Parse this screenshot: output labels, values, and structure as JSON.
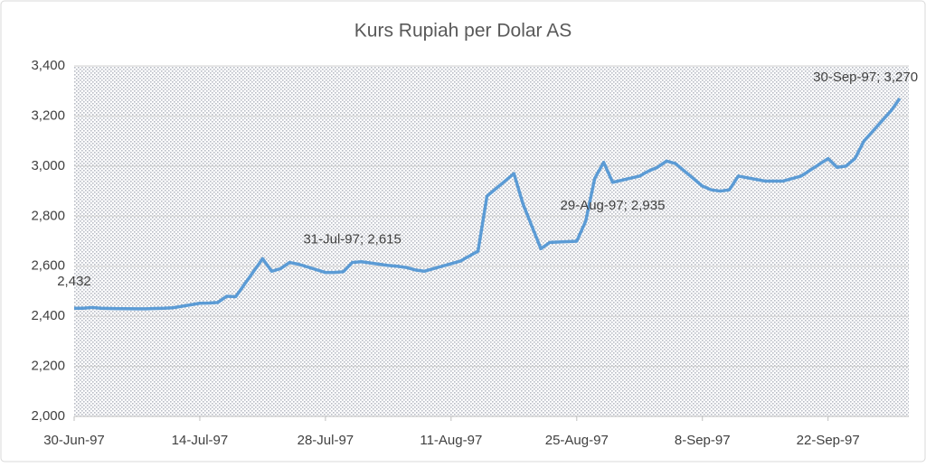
{
  "chart_data": {
    "type": "line",
    "title": "Kurs Rupiah per Dolar AS",
    "x": [
      "30-Jun-97",
      "1-Jul-97",
      "2-Jul-97",
      "3-Jul-97",
      "4-Jul-97",
      "7-Jul-97",
      "8-Jul-97",
      "9-Jul-97",
      "10-Jul-97",
      "11-Jul-97",
      "14-Jul-97",
      "15-Jul-97",
      "16-Jul-97",
      "17-Jul-97",
      "18-Jul-97",
      "21-Jul-97",
      "22-Jul-97",
      "23-Jul-97",
      "24-Jul-97",
      "25-Jul-97",
      "28-Jul-97",
      "29-Jul-97",
      "30-Jul-97",
      "31-Jul-97",
      "1-Aug-97",
      "4-Aug-97",
      "5-Aug-97",
      "6-Aug-97",
      "7-Aug-97",
      "8-Aug-97",
      "11-Aug-97",
      "12-Aug-97",
      "13-Aug-97",
      "14-Aug-97",
      "15-Aug-97",
      "18-Aug-97",
      "19-Aug-97",
      "20-Aug-97",
      "21-Aug-97",
      "22-Aug-97",
      "25-Aug-97",
      "26-Aug-97",
      "27-Aug-97",
      "28-Aug-97",
      "29-Aug-97",
      "1-Sep-97",
      "2-Sep-97",
      "3-Sep-97",
      "4-Sep-97",
      "5-Sep-97",
      "8-Sep-97",
      "9-Sep-97",
      "10-Sep-97",
      "11-Sep-97",
      "12-Sep-97",
      "15-Sep-97",
      "16-Sep-97",
      "17-Sep-97",
      "18-Sep-97",
      "19-Sep-97",
      "22-Sep-97",
      "23-Sep-97",
      "24-Sep-97",
      "25-Sep-97",
      "26-Sep-97",
      "29-Sep-97",
      "30-Sep-97"
    ],
    "series": [
      {
        "name": "Kurs",
        "color": "#5b9bd5",
        "values": [
          2432,
          2432,
          2435,
          2432,
          2431,
          2430,
          2430,
          2431,
          2432,
          2434,
          2452,
          2453,
          2455,
          2480,
          2478,
          2630,
          2580,
          2590,
          2615,
          2608,
          2575,
          2575,
          2578,
          2615,
          2618,
          2603,
          2600,
          2595,
          2585,
          2580,
          2610,
          2620,
          2640,
          2660,
          2880,
          2970,
          2850,
          2760,
          2670,
          2695,
          2700,
          2780,
          2950,
          3015,
          2935,
          2960,
          2980,
          2995,
          3020,
          3010,
          2920,
          2905,
          2900,
          2905,
          2960,
          2940,
          2940,
          2940,
          2950,
          2960,
          3030,
          2995,
          3000,
          3030,
          3100,
          3220,
          3270
        ],
        "value_labels": [
          "2,432",
          null,
          null,
          null,
          null,
          null,
          null,
          null,
          null,
          null,
          null,
          null,
          null,
          null,
          null,
          null,
          null,
          null,
          null,
          null,
          null,
          null,
          null,
          "31-Jul-97; 2,615",
          null,
          null,
          null,
          null,
          null,
          null,
          null,
          null,
          null,
          null,
          null,
          null,
          null,
          null,
          null,
          null,
          null,
          null,
          null,
          null,
          "29-Aug-97; 2,935",
          null,
          null,
          null,
          null,
          null,
          null,
          null,
          null,
          null,
          null,
          null,
          null,
          null,
          null,
          null,
          null,
          null,
          null,
          null,
          null,
          null,
          "30-Sep-97; 3,270"
        ]
      }
    ],
    "xlim": [
      "30-Jun-97",
      "1-Oct-97"
    ],
    "xticks": [
      "30-Jun-97",
      "14-Jul-97",
      "28-Jul-97",
      "11-Aug-97",
      "25-Aug-97",
      "8-Sep-97",
      "22-Sep-97"
    ],
    "ylim": [
      2000,
      3400
    ],
    "yticks": [
      {
        "value": 2000,
        "label": "2,000"
      },
      {
        "value": 2200,
        "label": "2,200"
      },
      {
        "value": 2400,
        "label": "2,400"
      },
      {
        "value": 2600,
        "label": "2,600"
      },
      {
        "value": 2800,
        "label": "2,800"
      },
      {
        "value": 3000,
        "label": "3,000"
      },
      {
        "value": 3200,
        "label": "3,200"
      },
      {
        "value": 3400,
        "label": "3,400"
      }
    ],
    "grid": true
  }
}
